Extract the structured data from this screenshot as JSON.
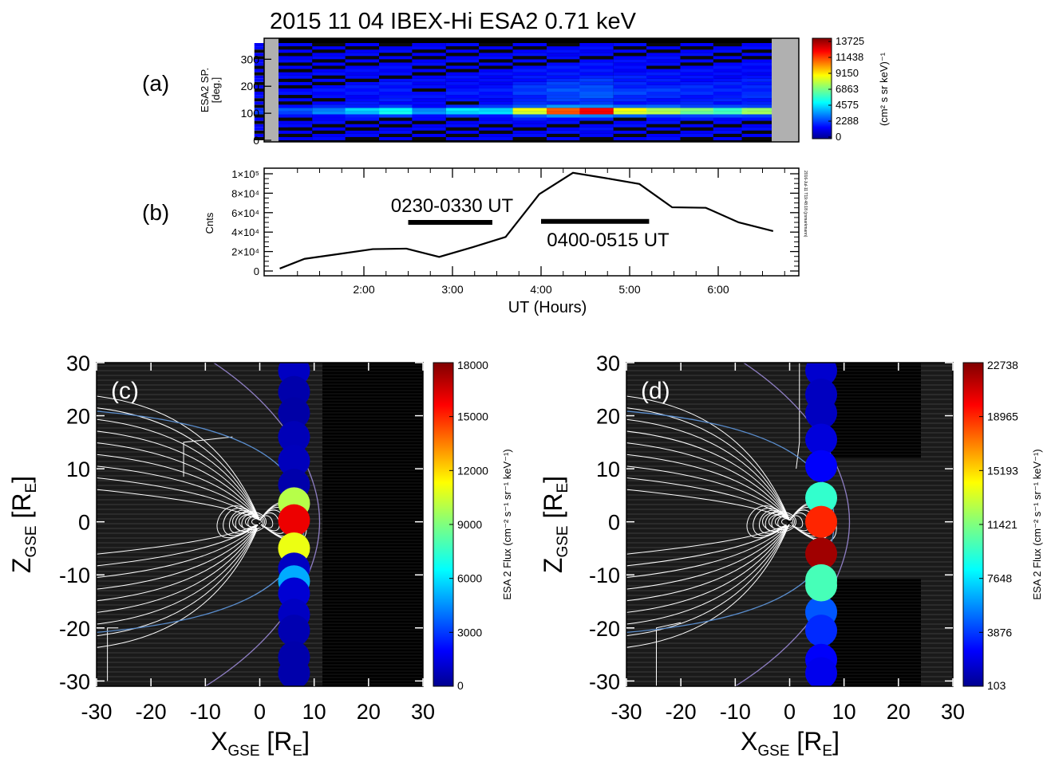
{
  "figure": {
    "title": "2015 11 04 IBEX-Hi ESA2 0.71 keV",
    "stamp": "2016-Jul-11 T19:48:18 (jrsmarkmann)"
  },
  "panel_a": {
    "label": "(a)",
    "ylabel": "ESA2 SP. [deg.]",
    "yticks": [
      "0",
      "100",
      "200",
      "300"
    ],
    "colorbar_label": "(cm² s sr keV)⁻¹",
    "colorbar_ticks": [
      "0",
      "2288",
      "4575",
      "6863",
      "9150",
      "11438",
      "13725"
    ]
  },
  "panel_b": {
    "label": "(b)",
    "ylabel": "Cnts",
    "yticks": [
      "0",
      "2×10⁴",
      "4×10⁴",
      "6×10⁴",
      "8×10⁴",
      "1×10⁵"
    ],
    "xticks": [
      "2:00",
      "3:00",
      "4:00",
      "5:00",
      "6:00"
    ],
    "xlabel": "UT (Hours)",
    "annotations": [
      {
        "text": "0230-0330 UT",
        "start_h": 2.5,
        "end_h": 3.45,
        "level": 50000
      },
      {
        "text": "0400-0515 UT",
        "start_h": 4.0,
        "end_h": 5.22,
        "level": 51000
      }
    ]
  },
  "panel_c": {
    "label": "(c)",
    "xlabel": "X_GSE [R_E]",
    "ylabel": "Z_GSE [R_E]",
    "ticks": [
      "-30",
      "-20",
      "-10",
      "0",
      "10",
      "20",
      "30"
    ],
    "colorbar_label": "ESA 2 Flux (cm⁻² s⁻¹ sr⁻¹ keV⁻¹)",
    "colorbar_ticks": [
      "0",
      "3000",
      "6000",
      "9000",
      "12000",
      "15000",
      "18000"
    ]
  },
  "panel_d": {
    "label": "(d)",
    "xlabel": "X_GSE [R_E]",
    "ylabel": "Z_GSE [R_E]",
    "ticks": [
      "-30",
      "-20",
      "-10",
      "0",
      "10",
      "20",
      "30"
    ],
    "colorbar_label": "ESA 2 Flux (cm⁻² s⁻¹ sr⁻¹ keV⁻¹)",
    "colorbar_ticks": [
      "103",
      "3876",
      "7648",
      "11421",
      "15193",
      "18965",
      "22738"
    ]
  },
  "chart_data": [
    {
      "type": "heatmap",
      "panel": "a",
      "title": "2015 11 04 IBEX-Hi ESA2 0.71 keV",
      "ylabel": "ESA2 SP. [deg.]",
      "x_range_hours": [
        1.0,
        6.67
      ],
      "ylim": [
        0,
        360
      ],
      "zlim": [
        0,
        13725
      ],
      "description_of_values": "peak intensity band near 100-115 deg; strongest 4:00-6:00 UT",
      "time_columns_h": [
        1.08,
        1.35,
        1.73,
        2.1,
        2.48,
        2.85,
        3.23,
        3.6,
        3.98,
        4.36,
        4.73,
        5.11,
        5.48,
        5.86,
        6.23,
        6.55
      ],
      "band_peak_values": [
        800,
        1500,
        2500,
        3800,
        5000,
        2500,
        4000,
        4000,
        9000,
        12500,
        13725,
        9000,
        8000,
        7000,
        6000,
        7500
      ]
    },
    {
      "type": "line",
      "panel": "b",
      "xlabel": "UT (Hours)",
      "ylabel": "Cnts",
      "xlim": [
        1.0,
        7.0
      ],
      "ylim": [
        0,
        100000
      ],
      "x": [
        1.05,
        1.33,
        1.72,
        2.1,
        2.48,
        2.85,
        3.23,
        3.6,
        3.98,
        4.36,
        4.73,
        5.11,
        5.48,
        5.86,
        6.23,
        6.62
      ],
      "y": [
        2500,
        12500,
        17500,
        22500,
        23000,
        14500,
        24500,
        35000,
        79000,
        101000,
        95500,
        89500,
        65500,
        65000,
        50000,
        41000
      ]
    },
    {
      "type": "scatter",
      "panel": "c",
      "xlabel": "X_GSE [R_E]",
      "ylabel": "Z_GSE [R_E]",
      "xlim": [
        -30,
        30
      ],
      "ylim": [
        -31,
        30
      ],
      "zlim": [
        0,
        18000
      ],
      "x": [
        6.3,
        6.3,
        6.3,
        6.3,
        6.3,
        6.3,
        6.3,
        6.3,
        6.3,
        6.3,
        6.3,
        6.3,
        6.3,
        6.3,
        6.3,
        6.3
      ],
      "y": [
        28.5,
        24.5,
        20.5,
        16.0,
        11.5,
        7.0,
        3.5,
        0.3,
        -5.0,
        -8.8,
        -11.2,
        -13.5,
        -17.5,
        -20.5,
        -25.5,
        -28.5
      ],
      "z": [
        900,
        500,
        400,
        700,
        800,
        500,
        10000,
        16000,
        11000,
        900,
        5000,
        1200,
        900,
        600,
        500,
        500
      ]
    },
    {
      "type": "scatter",
      "panel": "d",
      "xlabel": "X_GSE [R_E]",
      "ylabel": "Z_GSE [R_E]",
      "xlim": [
        -30,
        30
      ],
      "ylim": [
        -31,
        30
      ],
      "zlim": [
        103,
        22738
      ],
      "x": [
        5.8,
        5.8,
        5.8,
        5.8,
        5.8,
        5.8,
        5.8,
        5.8,
        5.8,
        5.8,
        5.8,
        5.8,
        5.8,
        5.8
      ],
      "y": [
        28.5,
        24.0,
        20.5,
        15.5,
        10.5,
        4.5,
        0.0,
        -6.0,
        -11.0,
        -17.0,
        -20.5,
        -26.0,
        -28.5,
        -12.0
      ],
      "z": [
        1500,
        1200,
        1200,
        1800,
        2500,
        9500,
        19000,
        22000,
        10000,
        4500,
        3500,
        2500,
        2200,
        10000
      ]
    }
  ]
}
